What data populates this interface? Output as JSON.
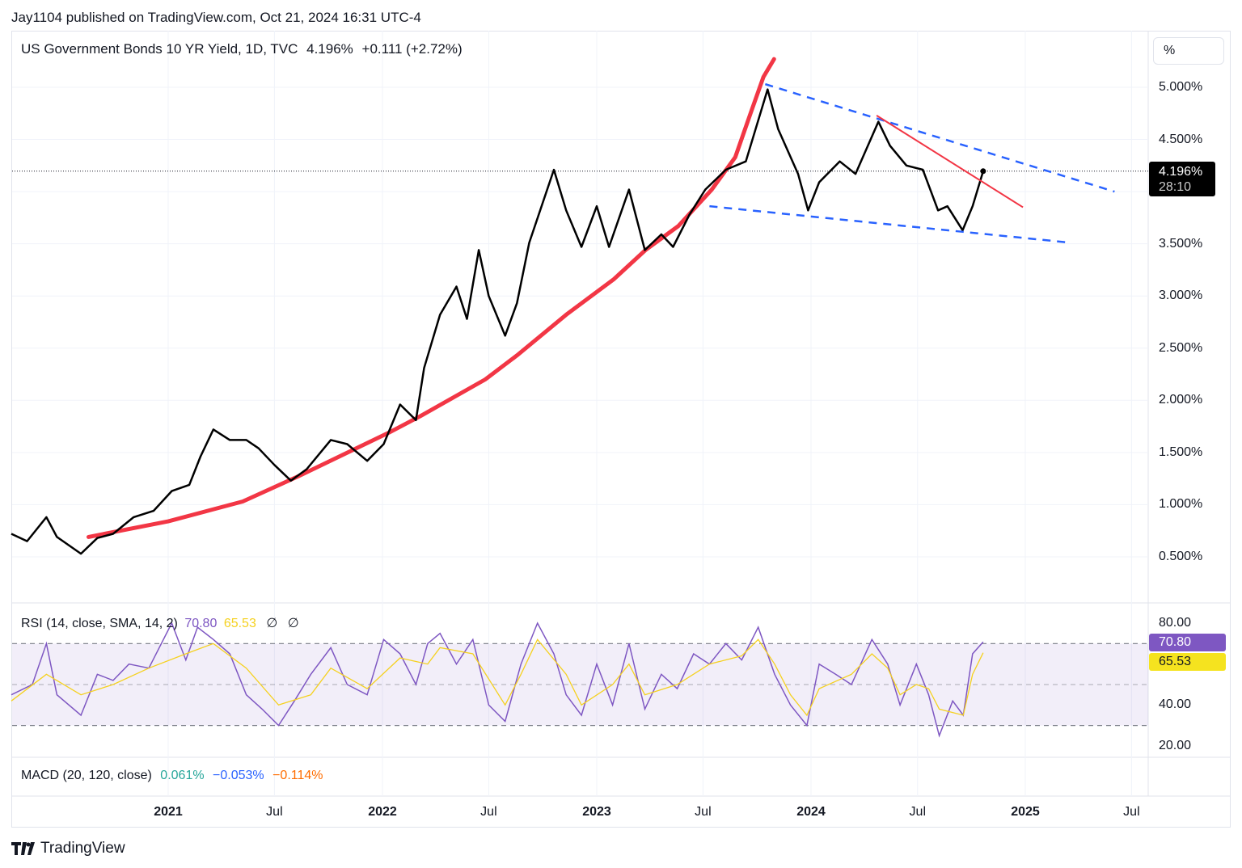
{
  "publisher": "Jay1104 published on TradingView.com, Oct 21, 2024 16:31 UTC-4",
  "legend": {
    "symbol": "US Government Bonds 10 YR Yield, 1D, TVC",
    "last": "4.196%",
    "change": "+0.111 (+2.72%)"
  },
  "scale_button": "%",
  "last_label": {
    "price": "4.196%",
    "countdown": "28:10"
  },
  "rsi": {
    "title": "RSI (14, close, SMA, 14, 2)",
    "value": "70.80",
    "signal": "65.53",
    "extra1": "∅",
    "extra2": "∅",
    "rsi_color": "#7e57c2",
    "signal_color": "#f5d11f"
  },
  "macd": {
    "title": "MACD (20, 120, close)",
    "v1": "0.061%",
    "v2": "−0.053%",
    "v3": "−0.114%",
    "c1": "#26a69a",
    "c2": "#2962ff",
    "c3": "#ff6d00"
  },
  "footer": {
    "brand": "TradingView"
  },
  "chart_data": [
    {
      "type": "line",
      "title": "US Government Bonds 10 YR Yield, 1D, TVC",
      "ylabel": "%",
      "ylim": [
        0.0,
        5.5
      ],
      "y_ticks": [
        "0.500%",
        "1.000%",
        "1.500%",
        "2.000%",
        "2.500%",
        "3.000%",
        "3.500%",
        "4.000%",
        "4.500%",
        "5.000%"
      ],
      "y_tick_values": [
        0.5,
        1.0,
        1.5,
        2.0,
        2.5,
        3.0,
        3.5,
        4.0,
        4.5,
        5.0
      ],
      "x_ticks": [
        {
          "label": "2021",
          "date": "2021-01-01",
          "year": true
        },
        {
          "label": "Jul",
          "date": "2021-07-01"
        },
        {
          "label": "2022",
          "date": "2022-01-01",
          "year": true
        },
        {
          "label": "Jul",
          "date": "2022-07-01"
        },
        {
          "label": "2023",
          "date": "2023-01-01",
          "year": true
        },
        {
          "label": "Jul",
          "date": "2023-07-01"
        },
        {
          "label": "2024",
          "date": "2024-01-01",
          "year": true
        },
        {
          "label": "Jul",
          "date": "2024-07-01"
        },
        {
          "label": "2025",
          "date": "2025-01-01",
          "year": true
        },
        {
          "label": "Jul",
          "date": "2025-07-01"
        }
      ],
      "grid": true,
      "series": [
        {
          "color": "#000000",
          "points": [
            [
              "2020-04-08",
              0.72
            ],
            [
              "2020-05-05",
              0.65
            ],
            [
              "2020-06-07",
              0.88
            ],
            [
              "2020-06-25",
              0.69
            ],
            [
              "2020-08-05",
              0.53
            ],
            [
              "2020-09-02",
              0.68
            ],
            [
              "2020-09-29",
              0.72
            ],
            [
              "2020-11-03",
              0.88
            ],
            [
              "2020-12-07",
              0.94
            ],
            [
              "2021-01-07",
              1.13
            ],
            [
              "2021-02-06",
              1.19
            ],
            [
              "2021-02-25",
              1.46
            ],
            [
              "2021-03-19",
              1.72
            ],
            [
              "2021-04-16",
              1.62
            ],
            [
              "2021-05-14",
              1.62
            ],
            [
              "2021-06-04",
              1.54
            ],
            [
              "2021-07-01",
              1.38
            ],
            [
              "2021-07-29",
              1.23
            ],
            [
              "2021-08-25",
              1.34
            ],
            [
              "2021-10-05",
              1.62
            ],
            [
              "2021-11-02",
              1.58
            ],
            [
              "2021-12-06",
              1.42
            ],
            [
              "2022-01-03",
              1.58
            ],
            [
              "2022-01-31",
              1.96
            ],
            [
              "2022-02-27",
              1.81
            ],
            [
              "2022-03-13",
              2.31
            ],
            [
              "2022-04-09",
              2.82
            ],
            [
              "2022-05-07",
              3.09
            ],
            [
              "2022-05-25",
              2.78
            ],
            [
              "2022-06-14",
              3.44
            ],
            [
              "2022-07-01",
              3.0
            ],
            [
              "2022-07-29",
              2.62
            ],
            [
              "2022-08-18",
              2.93
            ],
            [
              "2022-09-08",
              3.51
            ],
            [
              "2022-10-20",
              4.21
            ],
            [
              "2022-11-10",
              3.82
            ],
            [
              "2022-12-06",
              3.47
            ],
            [
              "2023-01-01",
              3.86
            ],
            [
              "2023-01-22",
              3.47
            ],
            [
              "2023-02-25",
              4.02
            ],
            [
              "2023-03-24",
              3.44
            ],
            [
              "2023-04-21",
              3.59
            ],
            [
              "2023-05-11",
              3.47
            ],
            [
              "2023-06-08",
              3.78
            ],
            [
              "2023-07-05",
              4.02
            ],
            [
              "2023-08-09",
              4.21
            ],
            [
              "2023-09-12",
              4.29
            ],
            [
              "2023-10-19",
              4.98
            ],
            [
              "2023-11-06",
              4.6
            ],
            [
              "2023-12-10",
              4.17
            ],
            [
              "2023-12-27",
              3.82
            ],
            [
              "2024-01-15",
              4.09
            ],
            [
              "2024-02-19",
              4.29
            ],
            [
              "2024-03-17",
              4.17
            ],
            [
              "2024-04-25",
              4.67
            ],
            [
              "2024-05-15",
              4.44
            ],
            [
              "2024-06-12",
              4.25
            ],
            [
              "2024-07-10",
              4.21
            ],
            [
              "2024-08-05",
              3.82
            ],
            [
              "2024-08-21",
              3.86
            ],
            [
              "2024-09-16",
              3.63
            ],
            [
              "2024-10-03",
              3.86
            ],
            [
              "2024-10-21",
              4.196
            ]
          ]
        },
        {
          "color": "#f23645",
          "points": [
            [
              "2020-08-18",
              0.69
            ],
            [
              "2021-01-01",
              0.84
            ],
            [
              "2021-05-08",
              1.03
            ],
            [
              "2021-08-10",
              1.27
            ],
            [
              "2021-11-03",
              1.5
            ],
            [
              "2022-01-12",
              1.69
            ],
            [
              "2022-03-07",
              1.85
            ],
            [
              "2022-06-25",
              2.2
            ],
            [
              "2022-08-18",
              2.43
            ],
            [
              "2022-11-10",
              2.82
            ],
            [
              "2023-01-30",
              3.16
            ],
            [
              "2023-03-25",
              3.44
            ],
            [
              "2023-05-20",
              3.67
            ],
            [
              "2023-07-16",
              4.02
            ],
            [
              "2023-08-25",
              4.33
            ],
            [
              "2023-09-20",
              4.75
            ],
            [
              "2023-10-12",
              5.1
            ],
            [
              "2023-10-30",
              5.27
            ]
          ]
        }
      ],
      "trendlines": [
        {
          "color": "#2962ff",
          "style": "dashed",
          "from": [
            "2023-10-15",
            5.03
          ],
          "to": [
            "2025-06-02",
            4.0
          ]
        },
        {
          "color": "#2962ff",
          "style": "dashed",
          "from": [
            "2023-07-12",
            3.86
          ],
          "to": [
            "2025-03-20",
            3.51
          ]
        },
        {
          "color": "#f23645",
          "style": "solid",
          "from": [
            "2024-04-22",
            4.73
          ],
          "to": [
            "2024-12-28",
            3.85
          ]
        }
      ],
      "last_value": 4.196
    },
    {
      "type": "line",
      "title": "RSI (14, close, SMA, 14, 2)",
      "ylim": [
        20,
        80
      ],
      "y_ticks": [
        "80.00",
        "40.00",
        "20.00"
      ],
      "y_tick_values": [
        80,
        40,
        20
      ],
      "bands": [
        70,
        50,
        30
      ],
      "series": [
        {
          "color": "#7e57c2",
          "points": [
            [
              "2020-04-08",
              45
            ],
            [
              "2020-05-14",
              50
            ],
            [
              "2020-06-07",
              70
            ],
            [
              "2020-06-25",
              45
            ],
            [
              "2020-08-05",
              35
            ],
            [
              "2020-09-02",
              55
            ],
            [
              "2020-09-29",
              52
            ],
            [
              "2020-10-26",
              60
            ],
            [
              "2020-11-29",
              58
            ],
            [
              "2021-01-07",
              80
            ],
            [
              "2021-01-31",
              62
            ],
            [
              "2021-02-20",
              78
            ],
            [
              "2021-03-19",
              72
            ],
            [
              "2021-04-16",
              65
            ],
            [
              "2021-05-14",
              45
            ],
            [
              "2021-06-10",
              38
            ],
            [
              "2021-07-08",
              30
            ],
            [
              "2021-08-04",
              42
            ],
            [
              "2021-09-01",
              55
            ],
            [
              "2021-10-05",
              68
            ],
            [
              "2021-11-02",
              50
            ],
            [
              "2021-12-06",
              45
            ],
            [
              "2022-01-03",
              72
            ],
            [
              "2022-01-31",
              65
            ],
            [
              "2022-02-27",
              50
            ],
            [
              "2022-03-19",
              70
            ],
            [
              "2022-04-09",
              75
            ],
            [
              "2022-05-07",
              60
            ],
            [
              "2022-06-04",
              72
            ],
            [
              "2022-07-01",
              40
            ],
            [
              "2022-07-29",
              32
            ],
            [
              "2022-08-25",
              60
            ],
            [
              "2022-09-22",
              80
            ],
            [
              "2022-10-20",
              65
            ],
            [
              "2022-11-10",
              45
            ],
            [
              "2022-12-06",
              35
            ],
            [
              "2023-01-01",
              60
            ],
            [
              "2023-01-28",
              40
            ],
            [
              "2023-02-25",
              70
            ],
            [
              "2023-03-24",
              38
            ],
            [
              "2023-04-21",
              55
            ],
            [
              "2023-05-18",
              48
            ],
            [
              "2023-06-15",
              65
            ],
            [
              "2023-07-12",
              60
            ],
            [
              "2023-08-09",
              70
            ],
            [
              "2023-09-05",
              62
            ],
            [
              "2023-10-03",
              78
            ],
            [
              "2023-10-31",
              55
            ],
            [
              "2023-11-27",
              40
            ],
            [
              "2023-12-25",
              30
            ],
            [
              "2024-01-15",
              60
            ],
            [
              "2024-02-12",
              55
            ],
            [
              "2024-03-10",
              50
            ],
            [
              "2024-04-14",
              72
            ],
            [
              "2024-05-11",
              60
            ],
            [
              "2024-06-01",
              40
            ],
            [
              "2024-06-29",
              60
            ],
            [
              "2024-07-20",
              45
            ],
            [
              "2024-08-07",
              25
            ],
            [
              "2024-08-30",
              42
            ],
            [
              "2024-09-17",
              35
            ],
            [
              "2024-10-03",
              65
            ],
            [
              "2024-10-21",
              70.8
            ]
          ]
        },
        {
          "color": "#f5d11f",
          "points": [
            [
              "2020-04-08",
              42
            ],
            [
              "2020-06-07",
              55
            ],
            [
              "2020-08-05",
              45
            ],
            [
              "2020-09-29",
              50
            ],
            [
              "2020-11-29",
              58
            ],
            [
              "2021-01-31",
              65
            ],
            [
              "2021-03-19",
              70
            ],
            [
              "2021-05-14",
              58
            ],
            [
              "2021-07-08",
              40
            ],
            [
              "2021-09-01",
              45
            ],
            [
              "2021-10-05",
              58
            ],
            [
              "2021-12-06",
              48
            ],
            [
              "2022-01-31",
              63
            ],
            [
              "2022-03-19",
              60
            ],
            [
              "2022-04-09",
              68
            ],
            [
              "2022-06-04",
              65
            ],
            [
              "2022-07-29",
              40
            ],
            [
              "2022-08-25",
              55
            ],
            [
              "2022-09-22",
              72
            ],
            [
              "2022-11-10",
              55
            ],
            [
              "2022-12-06",
              40
            ],
            [
              "2023-01-28",
              50
            ],
            [
              "2023-02-25",
              60
            ],
            [
              "2023-03-24",
              45
            ],
            [
              "2023-05-18",
              50
            ],
            [
              "2023-07-12",
              60
            ],
            [
              "2023-09-05",
              64
            ],
            [
              "2023-10-03",
              72
            ],
            [
              "2023-10-31",
              60
            ],
            [
              "2023-11-27",
              45
            ],
            [
              "2023-12-25",
              35
            ],
            [
              "2024-01-15",
              48
            ],
            [
              "2024-03-10",
              55
            ],
            [
              "2024-04-14",
              65
            ],
            [
              "2024-05-11",
              58
            ],
            [
              "2024-06-01",
              45
            ],
            [
              "2024-06-29",
              50
            ],
            [
              "2024-07-20",
              48
            ],
            [
              "2024-08-07",
              38
            ],
            [
              "2024-09-17",
              35
            ],
            [
              "2024-10-03",
              55
            ],
            [
              "2024-10-21",
              65.53
            ]
          ]
        }
      ]
    }
  ]
}
